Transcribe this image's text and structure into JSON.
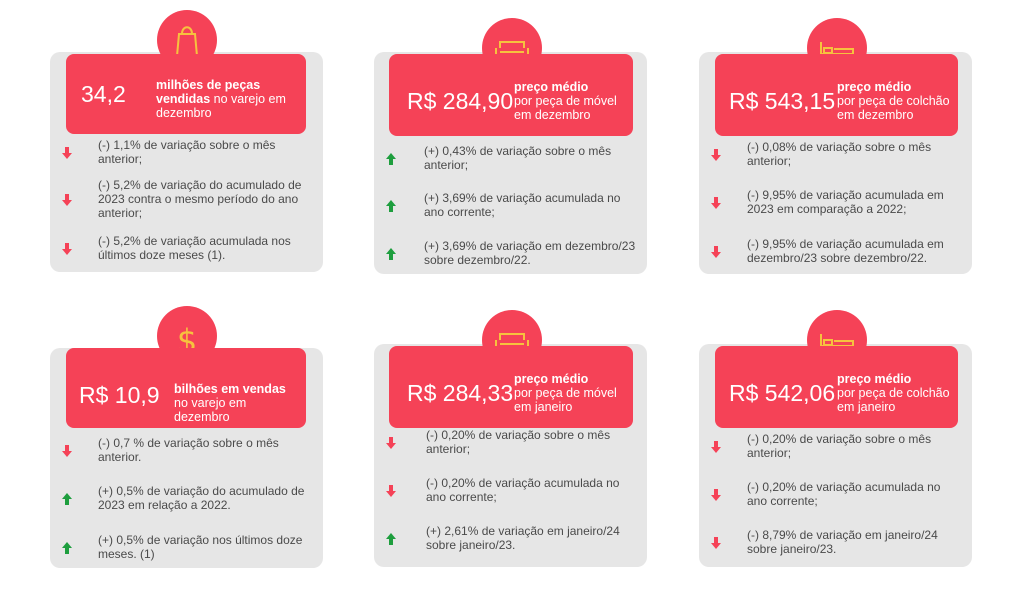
{
  "colors": {
    "accent": "#f54257",
    "panel": "#e6e6e6",
    "up": "#1e9e3e",
    "down": "#f54257",
    "text": "#4a4a4a"
  },
  "cards": [
    {
      "icon": "shopping-bag-icon",
      "value": "34,2",
      "label_bold": "milhões de peças vendidas",
      "label_rest": " no varejo em dezembro",
      "items": [
        {
          "dir": "down",
          "text": "(-) 1,1% de variação sobre o mês anterior;"
        },
        {
          "dir": "down",
          "text": "(-) 5,2% de variação do acumulado de 2023 contra o mesmo período do ano anterior;"
        },
        {
          "dir": "down",
          "text": "(-) 5,2% de variação acumulada nos últimos doze meses (1)."
        }
      ]
    },
    {
      "icon": "sofa-icon",
      "value": "R$ 284,90",
      "label_bold": "preço médio",
      "label_rest": "por peça de móvel em dezembro",
      "items": [
        {
          "dir": "up",
          "text": "(+) 0,43% de variação sobre o mês anterior;"
        },
        {
          "dir": "up",
          "text": "(+) 3,69% de variação acumulada no ano corrente;"
        },
        {
          "dir": "up",
          "text": "(+) 3,69% de variação em dezembro/23 sobre dezembro/22."
        }
      ]
    },
    {
      "icon": "bed-icon",
      "value": "R$ 543,15",
      "label_bold": "preço médio",
      "label_rest": "por peça de colchão em  dezembro",
      "items": [
        {
          "dir": "down",
          "text": "(-) 0,08% de variação sobre o mês anterior;"
        },
        {
          "dir": "down",
          "text": "(-) 9,95% de variação acumulada em 2023 em comparação a 2022;"
        },
        {
          "dir": "down",
          "text": "(-) 9,95% de variação acumulada em dezembro/23 sobre dezembro/22."
        }
      ]
    },
    {
      "icon": "dollar-icon",
      "value": "R$ 10,9",
      "label_bold": "bilhões em vendas",
      "label_rest": " no varejo em dezembro",
      "items": [
        {
          "dir": "down",
          "text": "(-) 0,7 % de variação sobre o mês anterior."
        },
        {
          "dir": "up",
          "text": "(+) 0,5% de variação do acumulado de 2023 em relação a 2022."
        },
        {
          "dir": "up",
          "text": "(+) 0,5% de variação nos últimos doze meses. (1)"
        }
      ]
    },
    {
      "icon": "sofa-icon",
      "value": "R$ 284,33",
      "label_bold": "preço médio",
      "label_rest": "por peça de móvel em janeiro",
      "items": [
        {
          "dir": "down",
          "text": "(-) 0,20% de variação sobre o mês anterior;"
        },
        {
          "dir": "down",
          "text": "(-) 0,20% de variação acumulada no ano corrente;"
        },
        {
          "dir": "up",
          "text": "(+) 2,61% de variação em janeiro/24 sobre janeiro/23."
        }
      ]
    },
    {
      "icon": "bed-icon",
      "value": "R$ 542,06",
      "label_bold": "preço médio",
      "label_rest": "por peça de colchão em  janeiro",
      "items": [
        {
          "dir": "down",
          "text": "(-) 0,20% de variação sobre o mês anterior;"
        },
        {
          "dir": "down",
          "text": "(-) 0,20% de variação acumulada no ano corrente;"
        },
        {
          "dir": "down",
          "text": "(-) 8,79% de variação em  janeiro/24 sobre janeiro/23."
        }
      ]
    }
  ]
}
